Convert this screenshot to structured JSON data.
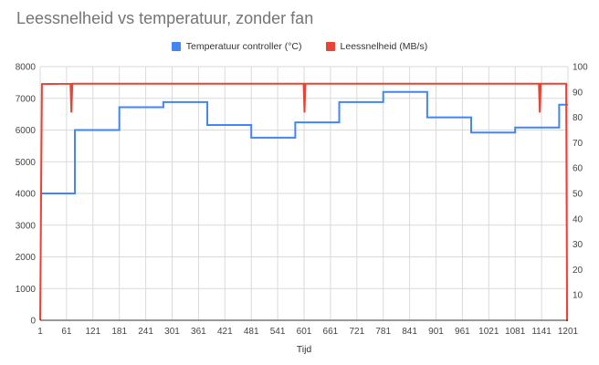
{
  "chart_data": {
    "type": "line",
    "title": "Leessnelheid vs temperatuur, zonder fan",
    "xlabel": "Tijd",
    "ylabel_left": "",
    "ylabel_right": "",
    "xlim": [
      1,
      1201
    ],
    "x_ticks": [
      "1",
      "61",
      "121",
      "181",
      "241",
      "301",
      "361",
      "421",
      "481",
      "541",
      "601",
      "661",
      "721",
      "781",
      "841",
      "901",
      "961",
      "1021",
      "1081",
      "1141",
      "1201"
    ],
    "y_left": {
      "lim": [
        0,
        8000
      ],
      "ticks": [
        "0",
        "1000",
        "2000",
        "3000",
        "4000",
        "5000",
        "6000",
        "7000",
        "8000"
      ]
    },
    "y_right": {
      "lim": [
        0,
        100
      ],
      "ticks": [
        "10",
        "20",
        "30",
        "40",
        "50",
        "60",
        "70",
        "80",
        "90",
        "100"
      ]
    },
    "grid": true,
    "legend_position": "top",
    "series": [
      {
        "name": "Temperatuur controller (°C)",
        "color": "#4285f4",
        "axis": "right",
        "points": [
          [
            1,
            50
          ],
          [
            80,
            50
          ],
          [
            80,
            75
          ],
          [
            181,
            75
          ],
          [
            181,
            84
          ],
          [
            281,
            84
          ],
          [
            281,
            86
          ],
          [
            381,
            86
          ],
          [
            381,
            77
          ],
          [
            481,
            77
          ],
          [
            481,
            72
          ],
          [
            581,
            72
          ],
          [
            581,
            78
          ],
          [
            681,
            78
          ],
          [
            681,
            86
          ],
          [
            781,
            86
          ],
          [
            781,
            90
          ],
          [
            881,
            90
          ],
          [
            881,
            80
          ],
          [
            981,
            80
          ],
          [
            981,
            74
          ],
          [
            1081,
            74
          ],
          [
            1081,
            76
          ],
          [
            1181,
            76
          ],
          [
            1181,
            85
          ],
          [
            1201,
            85
          ]
        ]
      },
      {
        "name": "Leessnelheid (MB/s)",
        "color": "#ea4335",
        "axis": "left",
        "points": [
          [
            1,
            0
          ],
          [
            5,
            7450
          ],
          [
            70,
            7460
          ],
          [
            72,
            6550
          ],
          [
            74,
            7460
          ],
          [
            600,
            7460
          ],
          [
            602,
            6550
          ],
          [
            604,
            7460
          ],
          [
            1135,
            7460
          ],
          [
            1137,
            6550
          ],
          [
            1139,
            7460
          ],
          [
            1197,
            7460
          ],
          [
            1199,
            0
          ],
          [
            1201,
            0
          ]
        ]
      }
    ]
  }
}
